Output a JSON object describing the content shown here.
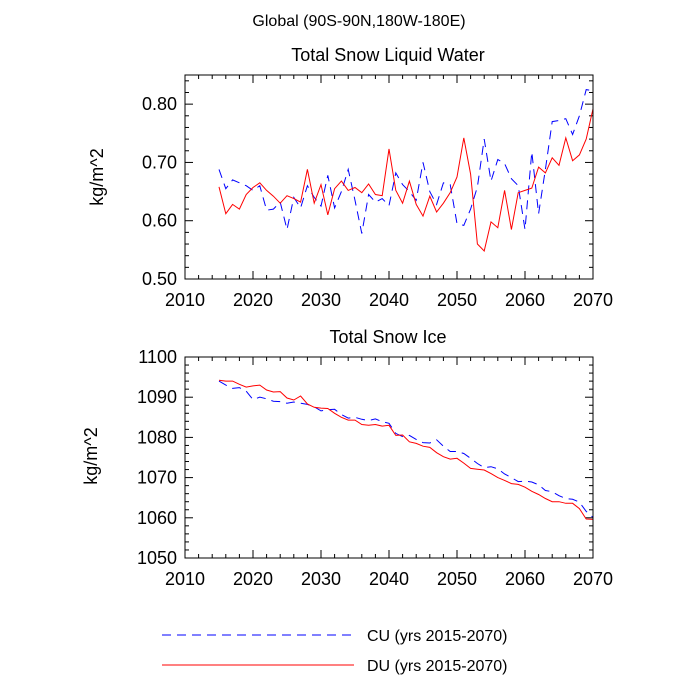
{
  "figure_title": "Global (90S-90N,180W-180E)",
  "legend": [
    {
      "label": "CU (yrs 2015-2070)",
      "color": "#0000ff",
      "style": "dashed"
    },
    {
      "label": "DU (yrs 2015-2070)",
      "color": "#ff0000",
      "style": "solid"
    }
  ],
  "chart_data": [
    {
      "type": "line",
      "title": "Total Snow Liquid Water",
      "xlabel": "",
      "ylabel": "kg/m^2",
      "xlim": [
        2010,
        2070
      ],
      "ylim": [
        0.5,
        0.85
      ],
      "xticks": [
        2010,
        2020,
        2030,
        2040,
        2050,
        2060,
        2070
      ],
      "xtick_labels": [
        "2010",
        "2020",
        "2030",
        "2040",
        "2050",
        "2060",
        "2070"
      ],
      "yticks": [
        0.5,
        0.6,
        0.7,
        0.8
      ],
      "ytick_labels": [
        "0.50",
        "0.60",
        "0.70",
        "0.80"
      ],
      "x": [
        2015,
        2016,
        2017,
        2018,
        2019,
        2020,
        2021,
        2022,
        2023,
        2024,
        2025,
        2026,
        2027,
        2028,
        2029,
        2030,
        2031,
        2032,
        2033,
        2034,
        2035,
        2036,
        2037,
        2038,
        2039,
        2040,
        2041,
        2042,
        2043,
        2044,
        2045,
        2046,
        2047,
        2048,
        2049,
        2050,
        2051,
        2052,
        2053,
        2054,
        2055,
        2056,
        2057,
        2058,
        2059,
        2060,
        2061,
        2062,
        2063,
        2064,
        2065,
        2066,
        2067,
        2068,
        2069,
        2070
      ],
      "series": [
        {
          "name": "CU (yrs 2015-2070)",
          "color": "#0000ff",
          "style": "dashed",
          "values": [
            0.688,
            0.655,
            0.67,
            0.665,
            0.66,
            0.652,
            0.66,
            0.618,
            0.62,
            0.632,
            0.585,
            0.64,
            0.622,
            0.66,
            0.64,
            0.625,
            0.678,
            0.622,
            0.65,
            0.688,
            0.635,
            0.578,
            0.645,
            0.632,
            0.638,
            0.626,
            0.682,
            0.662,
            0.65,
            0.635,
            0.7,
            0.65,
            0.628,
            0.665,
            0.662,
            0.595,
            0.592,
            0.62,
            0.658,
            0.74,
            0.668,
            0.705,
            0.698,
            0.672,
            0.66,
            0.585,
            0.718,
            0.612,
            0.688,
            0.77,
            0.772,
            0.775,
            0.748,
            0.78,
            0.825,
            0.823
          ]
        },
        {
          "name": "DU (yrs 2015-2070)",
          "color": "#ff0000",
          "style": "solid",
          "values": [
            0.658,
            0.612,
            0.628,
            0.62,
            0.645,
            0.657,
            0.665,
            0.652,
            0.642,
            0.63,
            0.643,
            0.638,
            0.632,
            0.688,
            0.63,
            0.662,
            0.61,
            0.655,
            0.668,
            0.652,
            0.657,
            0.648,
            0.663,
            0.645,
            0.643,
            0.723,
            0.652,
            0.63,
            0.668,
            0.628,
            0.608,
            0.642,
            0.615,
            0.63,
            0.648,
            0.675,
            0.742,
            0.68,
            0.56,
            0.548,
            0.598,
            0.588,
            0.652,
            0.585,
            0.648,
            0.652,
            0.656,
            0.692,
            0.682,
            0.708,
            0.695,
            0.742,
            0.703,
            0.713,
            0.74,
            0.792
          ]
        }
      ]
    },
    {
      "type": "line",
      "title": "Total Snow Ice",
      "xlabel": "",
      "ylabel": "kg/m^2",
      "xlim": [
        2010,
        2070
      ],
      "ylim": [
        1050,
        1100
      ],
      "xticks": [
        2010,
        2020,
        2030,
        2040,
        2050,
        2060,
        2070
      ],
      "xtick_labels": [
        "2010",
        "2020",
        "2030",
        "2040",
        "2050",
        "2060",
        "2070"
      ],
      "yticks": [
        1050,
        1060,
        1070,
        1080,
        1090,
        1100
      ],
      "ytick_labels": [
        "1050",
        "1060",
        "1070",
        "1080",
        "1090",
        "1100"
      ],
      "x": [
        2015,
        2016,
        2017,
        2018,
        2019,
        2020,
        2021,
        2022,
        2023,
        2024,
        2025,
        2026,
        2027,
        2028,
        2029,
        2030,
        2031,
        2032,
        2033,
        2034,
        2035,
        2036,
        2037,
        2038,
        2039,
        2040,
        2041,
        2042,
        2043,
        2044,
        2045,
        2046,
        2047,
        2048,
        2049,
        2050,
        2051,
        2052,
        2053,
        2054,
        2055,
        2056,
        2057,
        2058,
        2059,
        2060,
        2061,
        2062,
        2063,
        2064,
        2065,
        2066,
        2067,
        2068,
        2069,
        2070
      ],
      "series": [
        {
          "name": "CU (yrs 2015-2070)",
          "color": "#0000ff",
          "style": "dashed",
          "values": [
            1094.0,
            1093.0,
            1092.2,
            1092.4,
            1091.5,
            1089.4,
            1090.0,
            1089.6,
            1089.0,
            1088.9,
            1088.5,
            1088.8,
            1088.5,
            1088.2,
            1087.6,
            1086.6,
            1086.9,
            1087.0,
            1085.7,
            1084.8,
            1085.0,
            1084.5,
            1084.2,
            1084.6,
            1083.9,
            1083.5,
            1081.0,
            1080.2,
            1080.5,
            1079.5,
            1078.7,
            1078.6,
            1079.4,
            1077.8,
            1076.5,
            1076.5,
            1076.0,
            1074.8,
            1073.5,
            1072.5,
            1072.7,
            1072.2,
            1070.9,
            1070.0,
            1069.0,
            1069.1,
            1068.9,
            1068.2,
            1066.8,
            1066.5,
            1065.5,
            1064.8,
            1064.6,
            1063.9,
            1061.6,
            1060.1
          ]
        },
        {
          "name": "DU (yrs 2015-2070)",
          "color": "#ff0000",
          "style": "solid",
          "values": [
            1094.2,
            1094.0,
            1094.0,
            1093.2,
            1092.5,
            1092.8,
            1093.0,
            1091.8,
            1091.3,
            1091.4,
            1089.8,
            1089.3,
            1090.3,
            1088.3,
            1087.5,
            1087.3,
            1087.2,
            1086.0,
            1085.0,
            1084.3,
            1084.3,
            1083.2,
            1083.0,
            1083.2,
            1082.8,
            1083.0,
            1080.5,
            1080.6,
            1078.9,
            1078.5,
            1077.8,
            1077.5,
            1076.2,
            1075.2,
            1074.6,
            1074.8,
            1073.6,
            1072.3,
            1072.1,
            1071.9,
            1071.0,
            1070.0,
            1069.3,
            1068.5,
            1068.3,
            1067.6,
            1066.6,
            1065.8,
            1064.8,
            1064.0,
            1064.0,
            1063.6,
            1063.6,
            1062.3,
            1059.7,
            1059.6
          ]
        }
      ]
    }
  ]
}
